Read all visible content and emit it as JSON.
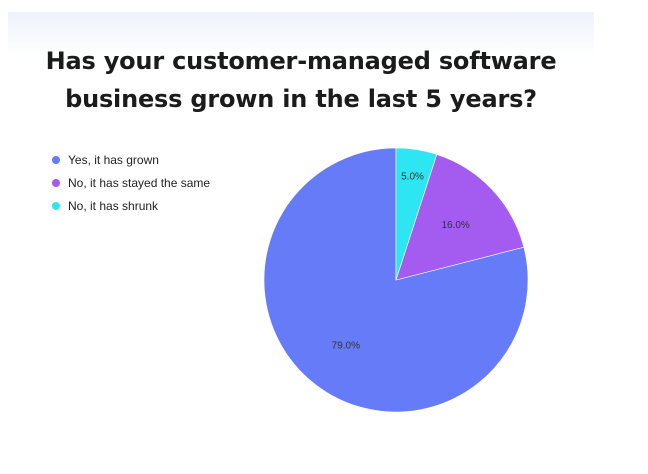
{
  "chart_data": {
    "type": "pie",
    "title_lines": [
      "Has your customer-managed software",
      "business grown in the last 5 years?"
    ],
    "slices": [
      {
        "name": "Yes, it has grown",
        "value": 79.0,
        "label": "79.0%",
        "color": "#667BF7"
      },
      {
        "name": "No, it has stayed the same",
        "value": 16.0,
        "label": "16.0%",
        "color": "#A45BF0"
      },
      {
        "name": "No, it has shrunk",
        "value": 5.0,
        "label": "5.0%",
        "color": "#2EE6F2"
      }
    ],
    "legend_position": "top-left",
    "start_angle_deg": 0,
    "direction": "counterclockwise"
  }
}
